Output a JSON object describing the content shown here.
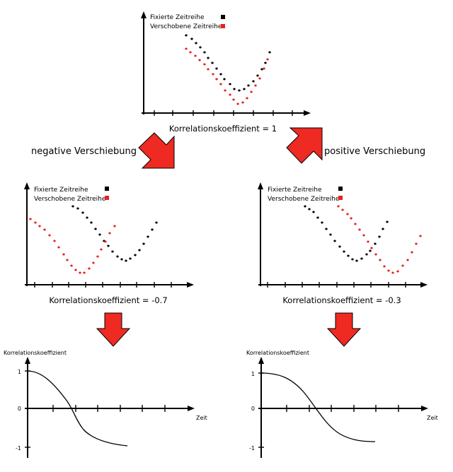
{
  "colors": {
    "fixed": "#000000",
    "shifted": "#e8211f",
    "arrow_fill": "#ee2a22",
    "arrow_stroke": "#000000"
  },
  "legend": {
    "fixed": "Fixierte Zeitreihe",
    "shifted": "Verschobene Zeitreihe"
  },
  "top_panel": {
    "caption": "Korrelationskoeffizient = 1"
  },
  "left_branch": {
    "label": "negative Verschiebung",
    "caption": "Korrelationskoeffizient = -0.7",
    "correlation_plot": {
      "ylabel": "Korrelationskoeffizient",
      "xlabel": "Zeit",
      "y_ticks": [
        "1",
        "0",
        "-1"
      ]
    }
  },
  "right_branch": {
    "label": "positive Verschiebung",
    "caption": "Korrelationskoeffizient = -0.3",
    "correlation_plot": {
      "ylabel": "Korrelationskoeffizient",
      "xlabel": "Zeit",
      "y_ticks": [
        "1",
        "0",
        "-1"
      ]
    }
  },
  "arrow_icon": "red-down-arrow-icon"
}
